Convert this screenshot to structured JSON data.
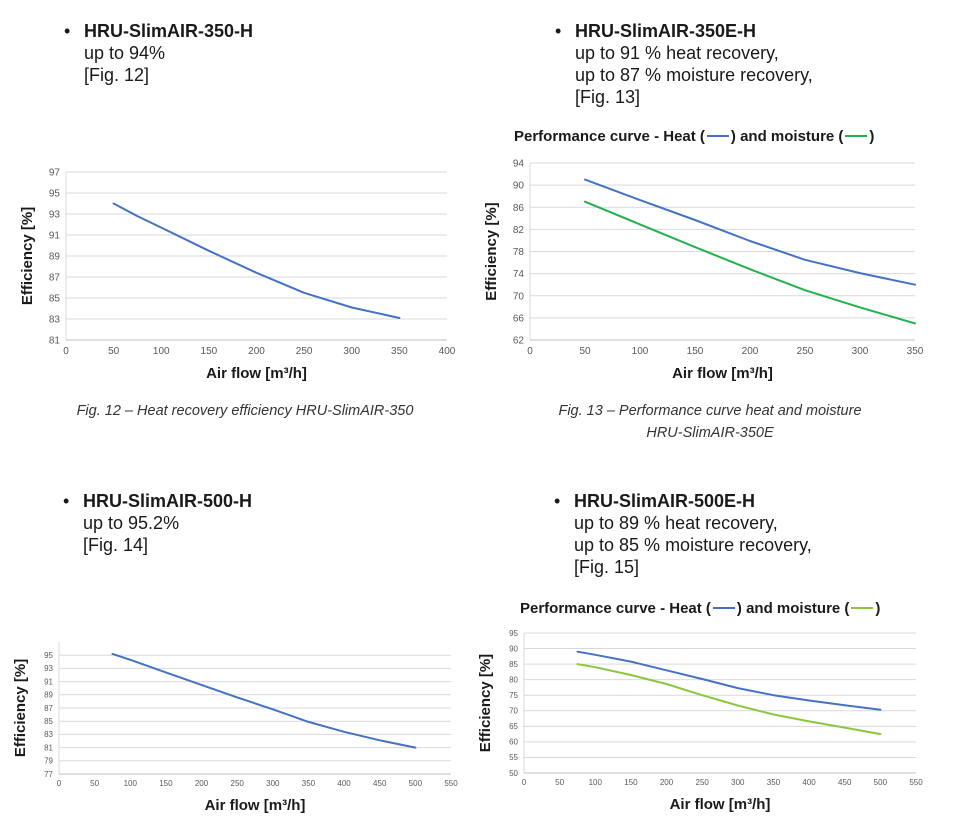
{
  "products": [
    {
      "name": "HRU-SlimAIR-350-H",
      "lines": [
        "up to 94%",
        "[Fig. 12]"
      ]
    },
    {
      "name": "HRU-SlimAIR-350E-H",
      "lines": [
        "up to 91 % heat recovery,",
        "up to 87 % moisture recovery,",
        "[Fig. 13]"
      ]
    },
    {
      "name": "HRU-SlimAIR-500-H",
      "lines": [
        "up to 95.2%",
        "[Fig. 14]"
      ]
    },
    {
      "name": "HRU-SlimAIR-500E-H",
      "lines": [
        "up to 89 % heat recovery,",
        "up to 85 % moisture recovery,",
        "[Fig. 15]"
      ]
    }
  ],
  "captions": {
    "fig12": "Fig. 12 – Heat recovery efficiency HRU-SlimAIR-350",
    "fig13_line1": "Fig. 13 – Performance curve heat and moisture",
    "fig13_line2": "HRU-SlimAIR-350E"
  },
  "legends": {
    "fig13": {
      "prefix": "Performance curve - Heat (",
      "middle": ") and moisture (",
      "suffix": ")"
    },
    "fig15": {
      "prefix": "Performance curve - Heat (",
      "middle": ") and moisture (",
      "suffix": ")"
    }
  },
  "chart_data": [
    {
      "id": "fig12",
      "type": "line",
      "xlabel": "Air flow [m³/h]",
      "ylabel": "Efficiency [%]",
      "xlim": [
        0,
        400
      ],
      "ylim": [
        81,
        97
      ],
      "xticks": [
        0,
        50,
        100,
        150,
        200,
        250,
        300,
        350,
        400
      ],
      "yticks": [
        81,
        83,
        85,
        87,
        89,
        91,
        93,
        95,
        97
      ],
      "series": [
        {
          "name": "Heat",
          "color": "#4472c4",
          "x": [
            50,
            75,
            100,
            150,
            200,
            250,
            300,
            350
          ],
          "y": [
            94,
            92.8,
            91.7,
            89.5,
            87.4,
            85.5,
            84.1,
            83.1
          ]
        }
      ]
    },
    {
      "id": "fig13",
      "type": "line",
      "xlabel": "Air flow [m³/h]",
      "ylabel": "Efficiency [%]",
      "xlim": [
        0,
        350
      ],
      "ylim": [
        62,
        94
      ],
      "xticks": [
        0,
        50,
        100,
        150,
        200,
        250,
        300,
        350
      ],
      "yticks": [
        62,
        66,
        70,
        74,
        78,
        82,
        86,
        90,
        94
      ],
      "series": [
        {
          "name": "Heat",
          "color": "#4472c4",
          "x": [
            50,
            100,
            150,
            200,
            250,
            300,
            350
          ],
          "y": [
            91,
            87.3,
            83.7,
            79.9,
            76.5,
            74.1,
            72
          ]
        },
        {
          "name": "Moisture",
          "color": "#22b14c",
          "x": [
            50,
            100,
            150,
            200,
            250,
            300,
            350
          ],
          "y": [
            87,
            82.9,
            78.8,
            74.8,
            71,
            67.9,
            65
          ]
        }
      ]
    },
    {
      "id": "fig14",
      "type": "line",
      "xlabel": "Air flow [m³/h]",
      "ylabel": "Efficiency [%]",
      "xlim": [
        0,
        550
      ],
      "ylim": [
        77,
        97
      ],
      "xticks": [
        0,
        50,
        100,
        150,
        200,
        250,
        300,
        350,
        400,
        450,
        500,
        550
      ],
      "yticks": [
        77,
        79,
        81,
        83,
        85,
        87,
        89,
        91,
        93,
        95
      ],
      "series": [
        {
          "name": "Heat",
          "color": "#4472c4",
          "x": [
            75,
            100,
            150,
            200,
            250,
            300,
            350,
            400,
            450,
            500
          ],
          "y": [
            95.2,
            94.3,
            92.4,
            90.5,
            88.6,
            86.8,
            84.9,
            83.4,
            82.1,
            81
          ]
        }
      ]
    },
    {
      "id": "fig15",
      "type": "line",
      "xlabel": "Air flow [m³/h]",
      "ylabel": "Efficiency [%]",
      "xlim": [
        0,
        550
      ],
      "ylim": [
        50,
        95
      ],
      "xticks": [
        0,
        50,
        100,
        150,
        200,
        250,
        300,
        350,
        400,
        450,
        500,
        550
      ],
      "yticks": [
        50,
        55,
        60,
        65,
        70,
        75,
        80,
        85,
        90,
        95
      ],
      "series": [
        {
          "name": "Heat",
          "color": "#4472c4",
          "x": [
            75,
            100,
            150,
            200,
            250,
            300,
            350,
            400,
            450,
            500
          ],
          "y": [
            89,
            88,
            85.8,
            83,
            80.2,
            77.3,
            75,
            73.3,
            71.8,
            70.3
          ]
        },
        {
          "name": "Moisture",
          "color": "#8cc63f",
          "x": [
            75,
            100,
            150,
            200,
            250,
            300,
            350,
            400,
            450,
            500
          ],
          "y": [
            85,
            84,
            81.5,
            78.6,
            75,
            71.7,
            68.8,
            66.6,
            64.6,
            62.5
          ]
        }
      ]
    }
  ]
}
